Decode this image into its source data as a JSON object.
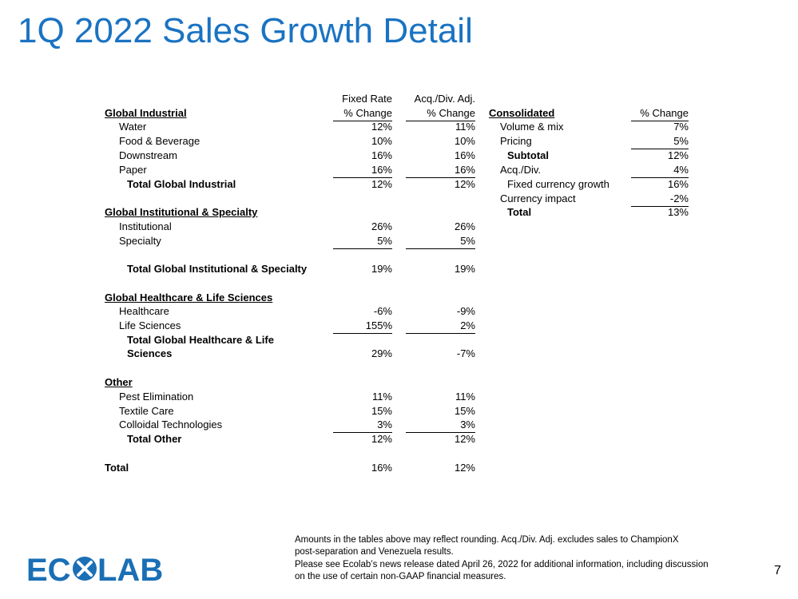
{
  "title": "1Q 2022 Sales Growth Detail",
  "left_headers": {
    "col1_line1": "Fixed Rate",
    "col1_line2": "% Change",
    "col2_line1": "Acq./Div. Adj.",
    "col2_line2": "% Change"
  },
  "left_rows": [
    {
      "label": "Global Industrial",
      "style": "section",
      "v1": "",
      "v2": ""
    },
    {
      "label": "Water",
      "style": "item",
      "v1": "12%",
      "v2": "11%"
    },
    {
      "label": "Food & Beverage",
      "style": "item",
      "v1": "10%",
      "v2": "10%"
    },
    {
      "label": "Downstream",
      "style": "item",
      "v1": "16%",
      "v2": "16%"
    },
    {
      "label": "Paper",
      "style": "item",
      "v1": "16%",
      "v2": "16%"
    },
    {
      "label": "Total Global Industrial",
      "style": "total",
      "v1": "12%",
      "v2": "12%"
    },
    {
      "label": "Global Institutional & Specialty",
      "style": "section",
      "v1": "",
      "v2": ""
    },
    {
      "label": "Institutional",
      "style": "item",
      "v1": "26%",
      "v2": "26%"
    },
    {
      "label": "Specialty",
      "style": "item",
      "v1": "5%",
      "v2": "5%"
    },
    {
      "label": "Total Global Institutional & Specialty",
      "style": "total",
      "v1": "19%",
      "v2": "19%"
    },
    {
      "label": "Global Healthcare & Life Sciences",
      "style": "section",
      "v1": "",
      "v2": ""
    },
    {
      "label": "Healthcare",
      "style": "item",
      "v1": "-6%",
      "v2": "-9%"
    },
    {
      "label": "Life Sciences",
      "style": "item",
      "v1": "155%",
      "v2": "2%"
    },
    {
      "label": "Total Global Healthcare & Life",
      "style": "total",
      "v1": "",
      "v2": ""
    },
    {
      "label": "Sciences",
      "style": "total",
      "v1": "29%",
      "v2": "-7%"
    },
    {
      "label": "Other",
      "style": "section",
      "v1": "",
      "v2": ""
    },
    {
      "label": "Pest Elimination",
      "style": "item",
      "v1": "11%",
      "v2": "11%"
    },
    {
      "label": "Textile Care",
      "style": "item",
      "v1": "15%",
      "v2": "15%"
    },
    {
      "label": "Colloidal Technologies",
      "style": "item",
      "v1": "3%",
      "v2": "3%"
    },
    {
      "label": "Total Other",
      "style": "total",
      "v1": "12%",
      "v2": "12%"
    },
    {
      "label": "Total",
      "style": "grand",
      "v1": "16%",
      "v2": "12%"
    }
  ],
  "right_header": {
    "label": "Consolidated",
    "col": "% Change"
  },
  "right_rows": [
    {
      "label": "Volume & mix",
      "value": "7%"
    },
    {
      "label": "Pricing",
      "value": "5%"
    },
    {
      "label": "Subtotal",
      "value": "12%"
    },
    {
      "label": "Acq./Div.",
      "value": "4%"
    },
    {
      "label": "Fixed currency growth",
      "value": "16%"
    },
    {
      "label": "Currency impact",
      "value": "-2%"
    },
    {
      "label": "Total",
      "value": "13%"
    }
  ],
  "footnote": {
    "line1": "Amounts in the tables above may reflect rounding.  Acq./Div. Adj. excludes sales to ChampionX",
    "line2": "post-separation and Venezuela results.",
    "line3": "Please see Ecolab’s news release dated April 26, 2022 for additional information, including discussion",
    "line4": "on the use of certain non-GAAP financial measures."
  },
  "logo_text": "ECOLAB",
  "logo_color": "#1a6fb5",
  "title_color": "#1a73c2",
  "page_number": "7"
}
